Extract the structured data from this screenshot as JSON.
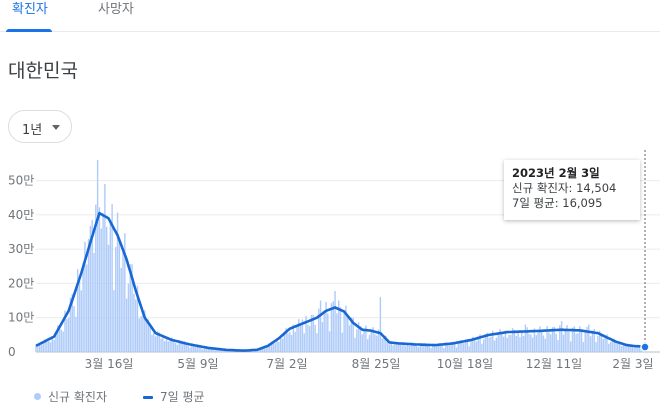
{
  "tabs": [
    {
      "label": "확진자",
      "active": true
    },
    {
      "label": "사망자",
      "active": false
    }
  ],
  "region_title": "대한민국",
  "range_dropdown": {
    "selected": "1년"
  },
  "colors": {
    "bar": "#aecbfa",
    "line": "#1967d2",
    "accent": "#1a73e8",
    "grid": "#ebebeb"
  },
  "tooltip": {
    "date": "2023년 2월 3일",
    "new_cases_label": "신규 확진자:",
    "new_cases_value": "14,504",
    "avg_label": "7일 평균:",
    "avg_value": "16,095"
  },
  "legend": {
    "bars": "신규 확진자",
    "line": "7일 평균"
  },
  "chart_data": {
    "type": "bar",
    "y_ticks": [
      {
        "value": 0,
        "label": "0"
      },
      {
        "value": 100000,
        "label": "10만"
      },
      {
        "value": 200000,
        "label": "20만"
      },
      {
        "value": 300000,
        "label": "30만"
      },
      {
        "value": 400000,
        "label": "40만"
      },
      {
        "value": 500000,
        "label": "50만"
      }
    ],
    "x_ticks": [
      "3월 16일",
      "5월 9일",
      "7월 2일",
      "8월 25일",
      "10월 18일",
      "12월 11일",
      "2월 3일"
    ],
    "ylim": [
      0,
      560000
    ],
    "series": [
      {
        "name": "신규 확진자",
        "type": "bar"
      },
      {
        "name": "7일 평균",
        "type": "line"
      }
    ],
    "weekly_avg_keypoints": [
      [
        0,
        18000
      ],
      [
        10,
        45000
      ],
      [
        18,
        120000
      ],
      [
        25,
        230000
      ],
      [
        30,
        320000
      ],
      [
        35,
        405000
      ],
      [
        40,
        390000
      ],
      [
        45,
        340000
      ],
      [
        50,
        270000
      ],
      [
        55,
        180000
      ],
      [
        60,
        100000
      ],
      [
        66,
        55000
      ],
      [
        75,
        35000
      ],
      [
        85,
        22000
      ],
      [
        95,
        12000
      ],
      [
        105,
        6000
      ],
      [
        115,
        4000
      ],
      [
        122,
        6500
      ],
      [
        128,
        18000
      ],
      [
        134,
        40000
      ],
      [
        140,
        68000
      ],
      [
        148,
        85000
      ],
      [
        155,
        100000
      ],
      [
        160,
        120000
      ],
      [
        165,
        130000
      ],
      [
        170,
        118000
      ],
      [
        175,
        85000
      ],
      [
        180,
        65000
      ],
      [
        185,
        62000
      ],
      [
        190,
        55000
      ],
      [
        195,
        28000
      ],
      [
        200,
        25000
      ],
      [
        210,
        22000
      ],
      [
        220,
        20000
      ],
      [
        230,
        25000
      ],
      [
        240,
        35000
      ],
      [
        250,
        50000
      ],
      [
        260,
        58000
      ],
      [
        270,
        60000
      ],
      [
        280,
        62000
      ],
      [
        290,
        65000
      ],
      [
        300,
        63000
      ],
      [
        310,
        55000
      ],
      [
        320,
        30000
      ],
      [
        326,
        20000
      ],
      [
        331,
        17000
      ],
      [
        336,
        16095
      ]
    ],
    "daily_spikes": [
      [
        29,
        330000
      ],
      [
        33,
        430000
      ],
      [
        34,
        560000
      ],
      [
        36,
        360000
      ],
      [
        38,
        490000
      ],
      [
        41,
        380000
      ],
      [
        46,
        330000
      ],
      [
        62,
        95000
      ],
      [
        72,
        40000
      ],
      [
        80,
        25000
      ],
      [
        147,
        95000
      ],
      [
        157,
        150000
      ],
      [
        165,
        178000
      ],
      [
        190,
        160000
      ],
      [
        270,
        80000
      ],
      [
        290,
        90000
      ],
      [
        305,
        80000
      ]
    ],
    "last_point": {
      "day": 336,
      "value": 14504
    }
  }
}
